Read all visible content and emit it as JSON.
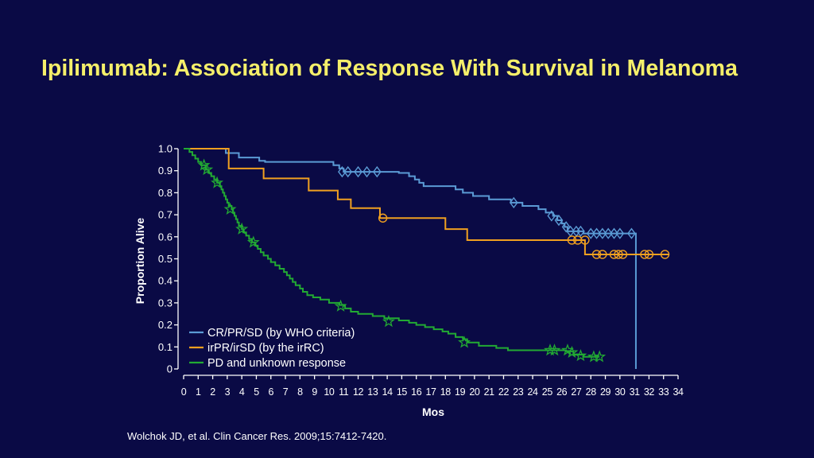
{
  "slide": {
    "title": "Ipilimumab: Association of Response With Survival in Melanoma",
    "citation": "Wolchok JD, et al. Clin Cancer Res. 2009;15:7412-7420."
  },
  "chart_data": {
    "type": "line",
    "subtype": "kaplan-meier",
    "xlabel": "Mos",
    "ylabel": "Proportion Alive",
    "xlim": [
      0,
      34
    ],
    "ylim": [
      0,
      1.0
    ],
    "xticks": [
      "0",
      "1",
      "2",
      "3",
      "4",
      "5",
      "6",
      "7",
      "8",
      "9",
      "10",
      "11",
      "12",
      "13",
      "14",
      "15",
      "16",
      "17",
      "18",
      "19",
      "20",
      "21",
      "22",
      "23",
      "24",
      "25",
      "26",
      "27",
      "28",
      "29",
      "30",
      "31",
      "32",
      "33",
      "34"
    ],
    "yticks": [
      "0",
      "0.1",
      "0.2",
      "0.3",
      "0.4",
      "0.5",
      "0.6",
      "0.7",
      "0.8",
      "0.9",
      "1.0"
    ],
    "grid": false,
    "legend_position": "bottom-left",
    "series": [
      {
        "name": "CR/PR/SD (by WHO criteria)",
        "color": "#5b9bd5",
        "marker": "diamond",
        "steps": [
          [
            0,
            1.0
          ],
          [
            2.9,
            0.98
          ],
          [
            3.8,
            0.96
          ],
          [
            5.2,
            0.945
          ],
          [
            5.6,
            0.94
          ],
          [
            10.3,
            0.925
          ],
          [
            10.7,
            0.91
          ],
          [
            11.0,
            0.895
          ],
          [
            14.8,
            0.89
          ],
          [
            15.5,
            0.875
          ],
          [
            15.9,
            0.86
          ],
          [
            16.2,
            0.845
          ],
          [
            16.5,
            0.83
          ],
          [
            18.7,
            0.815
          ],
          [
            19.2,
            0.8
          ],
          [
            19.9,
            0.785
          ],
          [
            21.0,
            0.77
          ],
          [
            22.5,
            0.755
          ],
          [
            23.3,
            0.74
          ],
          [
            24.4,
            0.725
          ],
          [
            24.9,
            0.71
          ],
          [
            25.4,
            0.695
          ],
          [
            25.7,
            0.675
          ],
          [
            26.0,
            0.66
          ],
          [
            26.2,
            0.645
          ],
          [
            26.4,
            0.625
          ],
          [
            27.5,
            0.615
          ],
          [
            31.1,
            0.0
          ]
        ],
        "censored": [
          [
            10.9,
            0.895
          ],
          [
            11.3,
            0.895
          ],
          [
            12.0,
            0.895
          ],
          [
            12.6,
            0.895
          ],
          [
            13.3,
            0.895
          ],
          [
            22.7,
            0.755
          ],
          [
            25.3,
            0.695
          ],
          [
            25.8,
            0.675
          ],
          [
            26.3,
            0.645
          ],
          [
            26.6,
            0.625
          ],
          [
            27.0,
            0.625
          ],
          [
            27.3,
            0.625
          ],
          [
            28.0,
            0.615
          ],
          [
            28.4,
            0.615
          ],
          [
            28.8,
            0.615
          ],
          [
            29.2,
            0.615
          ],
          [
            29.6,
            0.615
          ],
          [
            30.0,
            0.615
          ],
          [
            30.8,
            0.615
          ]
        ]
      },
      {
        "name": "irPR/irSD (by the irRC)",
        "color": "#f0a020",
        "marker": "circle",
        "steps": [
          [
            0,
            1.0
          ],
          [
            3.1,
            0.91
          ],
          [
            5.5,
            0.865
          ],
          [
            8.6,
            0.81
          ],
          [
            10.6,
            0.77
          ],
          [
            11.5,
            0.73
          ],
          [
            13.5,
            0.685
          ],
          [
            18.0,
            0.635
          ],
          [
            19.5,
            0.585
          ],
          [
            27.6,
            0.52
          ],
          [
            33.4,
            0.52
          ]
        ],
        "censored": [
          [
            13.7,
            0.685
          ],
          [
            26.7,
            0.585
          ],
          [
            27.1,
            0.585
          ],
          [
            27.6,
            0.585
          ],
          [
            28.4,
            0.52
          ],
          [
            28.8,
            0.52
          ],
          [
            29.6,
            0.52
          ],
          [
            29.9,
            0.52
          ],
          [
            30.2,
            0.52
          ],
          [
            31.7,
            0.52
          ],
          [
            32.0,
            0.52
          ],
          [
            33.1,
            0.52
          ]
        ]
      },
      {
        "name": "PD and unknown response",
        "color": "#22aa33",
        "marker": "star",
        "steps": [
          [
            0,
            1.0
          ],
          [
            0.4,
            0.985
          ],
          [
            0.6,
            0.97
          ],
          [
            0.8,
            0.955
          ],
          [
            1.0,
            0.94
          ],
          [
            1.2,
            0.925
          ],
          [
            1.5,
            0.905
          ],
          [
            1.7,
            0.89
          ],
          [
            1.9,
            0.875
          ],
          [
            2.1,
            0.86
          ],
          [
            2.3,
            0.845
          ],
          [
            2.5,
            0.83
          ],
          [
            2.6,
            0.815
          ],
          [
            2.7,
            0.8
          ],
          [
            2.8,
            0.785
          ],
          [
            2.9,
            0.77
          ],
          [
            3.0,
            0.755
          ],
          [
            3.1,
            0.74
          ],
          [
            3.3,
            0.725
          ],
          [
            3.4,
            0.71
          ],
          [
            3.5,
            0.695
          ],
          [
            3.6,
            0.68
          ],
          [
            3.7,
            0.665
          ],
          [
            3.8,
            0.65
          ],
          [
            4.0,
            0.635
          ],
          [
            4.1,
            0.62
          ],
          [
            4.3,
            0.605
          ],
          [
            4.5,
            0.59
          ],
          [
            4.7,
            0.575
          ],
          [
            4.9,
            0.56
          ],
          [
            5.1,
            0.545
          ],
          [
            5.3,
            0.53
          ],
          [
            5.5,
            0.515
          ],
          [
            5.8,
            0.5
          ],
          [
            6.0,
            0.485
          ],
          [
            6.3,
            0.47
          ],
          [
            6.6,
            0.455
          ],
          [
            6.9,
            0.44
          ],
          [
            7.1,
            0.425
          ],
          [
            7.3,
            0.41
          ],
          [
            7.5,
            0.395
          ],
          [
            7.7,
            0.38
          ],
          [
            8.0,
            0.365
          ],
          [
            8.2,
            0.35
          ],
          [
            8.5,
            0.335
          ],
          [
            8.9,
            0.325
          ],
          [
            9.4,
            0.315
          ],
          [
            10.0,
            0.3
          ],
          [
            10.7,
            0.29
          ],
          [
            11.1,
            0.275
          ],
          [
            11.5,
            0.26
          ],
          [
            12.0,
            0.25
          ],
          [
            13.0,
            0.24
          ],
          [
            13.8,
            0.23
          ],
          [
            14.8,
            0.22
          ],
          [
            15.5,
            0.21
          ],
          [
            16.0,
            0.2
          ],
          [
            16.6,
            0.19
          ],
          [
            17.2,
            0.18
          ],
          [
            17.8,
            0.17
          ],
          [
            18.2,
            0.16
          ],
          [
            18.7,
            0.145
          ],
          [
            19.2,
            0.135
          ],
          [
            19.5,
            0.12
          ],
          [
            20.3,
            0.105
          ],
          [
            21.5,
            0.095
          ],
          [
            22.3,
            0.085
          ],
          [
            26.3,
            0.08
          ],
          [
            26.8,
            0.065
          ],
          [
            27.5,
            0.055
          ]
        ],
        "censored": [
          [
            1.4,
            0.925
          ],
          [
            1.6,
            0.905
          ],
          [
            2.3,
            0.845
          ],
          [
            3.2,
            0.725
          ],
          [
            4.0,
            0.635
          ],
          [
            4.8,
            0.575
          ],
          [
            10.8,
            0.285
          ],
          [
            14.1,
            0.215
          ],
          [
            19.3,
            0.12
          ],
          [
            25.2,
            0.085
          ],
          [
            25.5,
            0.085
          ],
          [
            26.4,
            0.085
          ],
          [
            26.7,
            0.075
          ],
          [
            27.3,
            0.06
          ],
          [
            28.2,
            0.055
          ],
          [
            28.6,
            0.055
          ]
        ]
      }
    ]
  }
}
